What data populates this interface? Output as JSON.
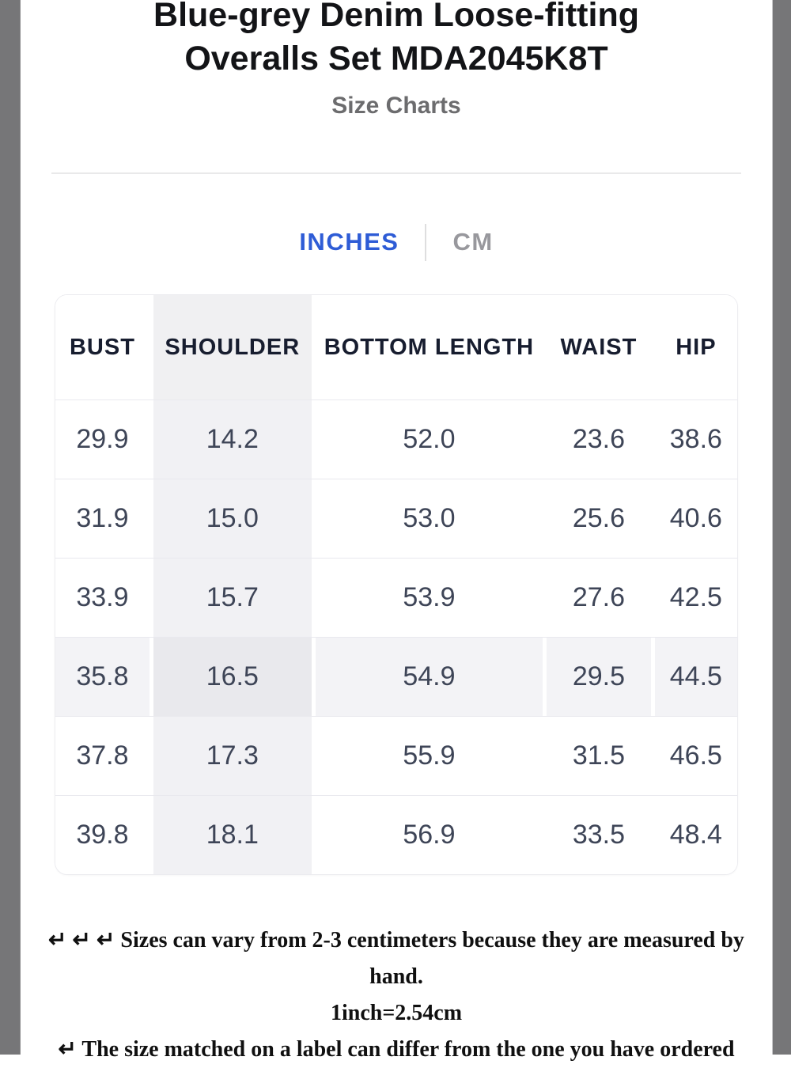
{
  "header": {
    "title_line1": "Blue-grey Denim Loose-fitting",
    "title_line2": "Overalls Set MDA2045K8T",
    "subtitle": "Size Charts"
  },
  "tabs": {
    "inches_label": "INCHES",
    "cm_label": "CM",
    "active_tab": "INCHES"
  },
  "size_table": {
    "columns": [
      "BUST",
      "SHOULDER",
      "BOTTOM LENGTH",
      "WAIST",
      "HIP"
    ],
    "rows": [
      [
        "29.9",
        "14.2",
        "52.0",
        "23.6",
        "38.6"
      ],
      [
        "31.9",
        "15.0",
        "53.0",
        "25.6",
        "40.6"
      ],
      [
        "33.9",
        "15.7",
        "53.9",
        "27.6",
        "42.5"
      ],
      [
        "35.8",
        "16.5",
        "54.9",
        "29.5",
        "44.5"
      ],
      [
        "37.8",
        "17.3",
        "55.9",
        "31.5",
        "46.5"
      ],
      [
        "39.8",
        "18.1",
        "56.9",
        "33.5",
        "48.4"
      ]
    ],
    "shaded_column_index": 1,
    "highlighted_row_index": 3
  },
  "notes": {
    "line1": "↵ ↵ ↵ Sizes can vary from 2-3 centimeters because they are measured by hand.",
    "line2": "1inch=2.54cm",
    "line3": "↵ The size matched on a label can differ from the one you have ordered"
  },
  "theme": {
    "accent": "#2e5cd6",
    "tab_inactive": "#98989d",
    "title_color": "#131417",
    "subtitle_color": "#6c6c6e",
    "divider_color": "#e9e9ea",
    "table_border": "#ececf0",
    "row_line": "#e9e9ee",
    "head_color": "#171d2f",
    "num_color": "#3e4557",
    "shaded_column": "#f1f1f4",
    "shaded_column_head": "#f0f0f2",
    "highlight_row": "#f3f3f6",
    "highlight_row_shade": "#e9e9ed",
    "notes_color": "#101010",
    "sidebar": "#767678"
  }
}
